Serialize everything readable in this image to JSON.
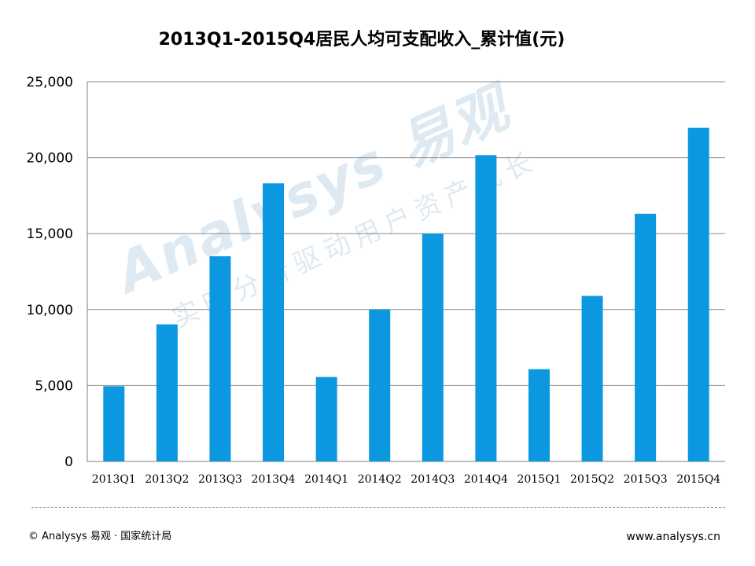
{
  "chart_data": {
    "type": "bar",
    "title": "2013Q1-2015Q4居民人均可支配收入_累计值(元)",
    "categories": [
      "2013Q1",
      "2013Q2",
      "2013Q3",
      "2013Q4",
      "2014Q1",
      "2014Q2",
      "2014Q3",
      "2014Q4",
      "2015Q1",
      "2015Q2",
      "2015Q3",
      "2015Q4"
    ],
    "values": [
      4954,
      9029,
      13509,
      18311,
      5562,
      10013,
      14994,
      20167,
      6076,
      10902,
      16311,
      21966
    ],
    "ylim": [
      0,
      25000
    ],
    "yticks": [
      0,
      5000,
      10000,
      15000,
      20000,
      25000
    ],
    "ytick_labels": [
      "0",
      "5,000",
      "10,000",
      "15,000",
      "20,000",
      "25,000"
    ],
    "grid": true,
    "legend": "none",
    "bar_color": "#0b98e0"
  },
  "watermark": {
    "brand": "Analysys 易观",
    "slogan": "实时分析驱动用户资产成长"
  },
  "footer": {
    "source": "© Analysys 易观 · 国家统计局",
    "website": "www.analysys.cn"
  }
}
